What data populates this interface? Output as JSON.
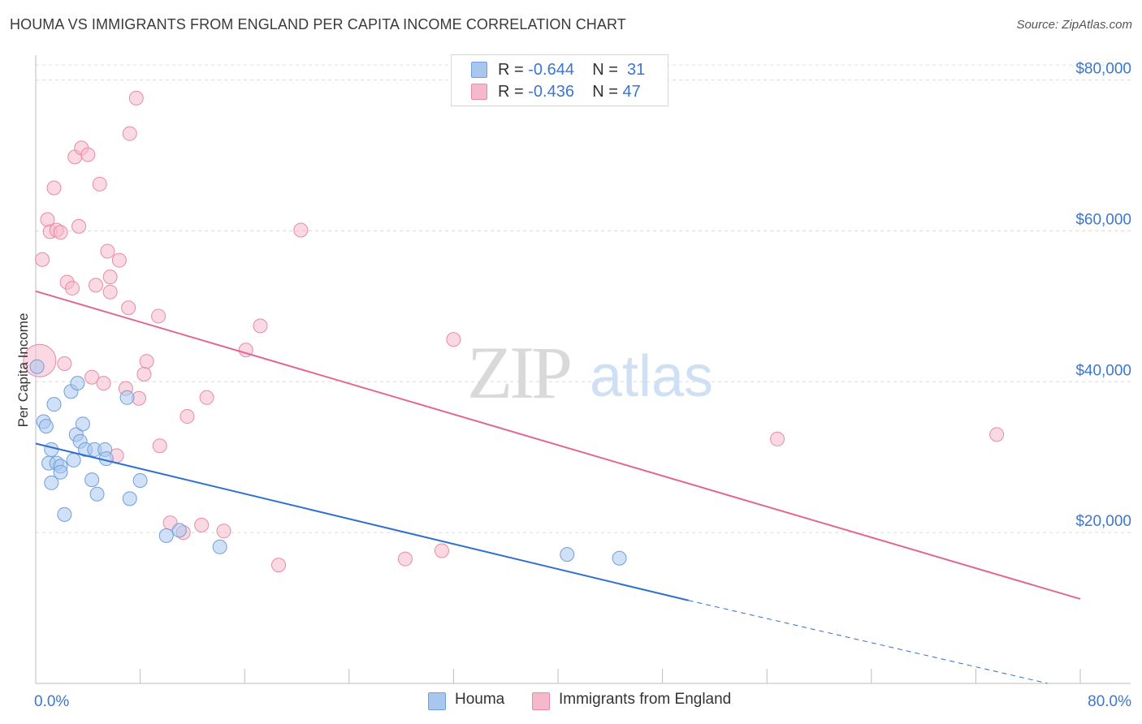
{
  "title": "HOUMA VS IMMIGRANTS FROM ENGLAND PER CAPITA INCOME CORRELATION CHART",
  "source": "Source: ZipAtlas.com",
  "watermark": {
    "zip": "ZIP",
    "atlas": "atlas"
  },
  "legend_top": {
    "r_label": "R =",
    "n_label": "N =",
    "rows": [
      {
        "r": "-0.644",
        "n": "31",
        "color": "#a9c6ee"
      },
      {
        "r": "-0.436",
        "n": "47",
        "color": "#f6b9cc"
      }
    ]
  },
  "colors": {
    "houma_fill": "#a9c6ee",
    "houma_stroke": "#6f9fdc",
    "houma_line": "#2f6fd0",
    "england_fill": "#f6b9cc",
    "england_stroke": "#e88aa6",
    "england_line": "#e06890",
    "axis_label": "#3b77d0",
    "grid": "#dcdcdc"
  },
  "chart_data": {
    "type": "scatter",
    "title": "HOUMA VS IMMIGRANTS FROM ENGLAND PER CAPITA INCOME CORRELATION CHART",
    "xlabel": "",
    "ylabel": "Per Capita Income",
    "xlim": [
      0,
      80
    ],
    "ylim": [
      0,
      82000
    ],
    "x_tick_labels": [
      "0.0%",
      "80.0%"
    ],
    "y_ticks": [
      20000,
      40000,
      60000,
      80000
    ],
    "y_tick_labels": [
      "$20,000",
      "$40,000",
      "$60,000",
      "$80,000"
    ],
    "grid": true,
    "legend_placement": "bottom-center",
    "series": [
      {
        "name": "Houma",
        "r": -0.644,
        "n": 31,
        "trend": {
          "x0": 0,
          "y0": 31800,
          "x1": 50,
          "y1": 11000,
          "dashed_to_x": 77.5,
          "dashed_to_y": 0
        },
        "points": [
          [
            0.1,
            42000
          ],
          [
            0.6,
            34700
          ],
          [
            0.8,
            34100
          ],
          [
            1.2,
            31000
          ],
          [
            1.4,
            37000
          ],
          [
            1.0,
            29200
          ],
          [
            1.2,
            26600
          ],
          [
            1.6,
            29200
          ],
          [
            1.9,
            28800
          ],
          [
            1.9,
            28000
          ],
          [
            2.2,
            22400
          ],
          [
            2.7,
            38700
          ],
          [
            2.9,
            29600
          ],
          [
            3.1,
            33000
          ],
          [
            3.2,
            39800
          ],
          [
            3.4,
            32100
          ],
          [
            3.6,
            34400
          ],
          [
            3.8,
            31000
          ],
          [
            4.3,
            27000
          ],
          [
            4.5,
            31000
          ],
          [
            4.7,
            25100
          ],
          [
            5.3,
            31000
          ],
          [
            5.4,
            29800
          ],
          [
            7.2,
            24500
          ],
          [
            7.0,
            37900
          ],
          [
            8.0,
            26900
          ],
          [
            10.0,
            19600
          ],
          [
            11.0,
            20300
          ],
          [
            14.1,
            18100
          ],
          [
            40.7,
            17100
          ],
          [
            44.7,
            16600
          ]
        ]
      },
      {
        "name": "Immigrants from England",
        "r": -0.436,
        "n": 47,
        "trend": {
          "x0": 0,
          "y0": 52000,
          "x1": 80,
          "y1": 11200
        },
        "points": [
          [
            0.3,
            42800
          ],
          [
            0.5,
            56200
          ],
          [
            0.9,
            61500
          ],
          [
            1.1,
            59900
          ],
          [
            1.4,
            65700
          ],
          [
            1.6,
            60100
          ],
          [
            1.9,
            59800
          ],
          [
            2.2,
            42400
          ],
          [
            2.4,
            53200
          ],
          [
            2.8,
            52400
          ],
          [
            3.0,
            69800
          ],
          [
            3.3,
            60600
          ],
          [
            3.5,
            71000
          ],
          [
            4.0,
            70100
          ],
          [
            4.3,
            40600
          ],
          [
            4.6,
            52800
          ],
          [
            4.9,
            66200
          ],
          [
            5.2,
            39800
          ],
          [
            5.5,
            57300
          ],
          [
            5.7,
            53900
          ],
          [
            5.7,
            51900
          ],
          [
            6.2,
            30200
          ],
          [
            6.4,
            56100
          ],
          [
            6.9,
            39100
          ],
          [
            7.1,
            49800
          ],
          [
            7.2,
            72900
          ],
          [
            7.7,
            77600
          ],
          [
            7.9,
            37800
          ],
          [
            8.3,
            41000
          ],
          [
            8.5,
            42700
          ],
          [
            9.4,
            48700
          ],
          [
            9.5,
            31500
          ],
          [
            10.3,
            21300
          ],
          [
            11.3,
            20000
          ],
          [
            11.6,
            35400
          ],
          [
            12.7,
            21000
          ],
          [
            13.1,
            37900
          ],
          [
            14.4,
            20200
          ],
          [
            16.1,
            44200
          ],
          [
            17.2,
            47400
          ],
          [
            18.6,
            15700
          ],
          [
            20.3,
            60100
          ],
          [
            28.3,
            16500
          ],
          [
            31.1,
            17600
          ],
          [
            32.0,
            45600
          ],
          [
            56.8,
            32400
          ],
          [
            73.6,
            33000
          ]
        ]
      }
    ]
  }
}
